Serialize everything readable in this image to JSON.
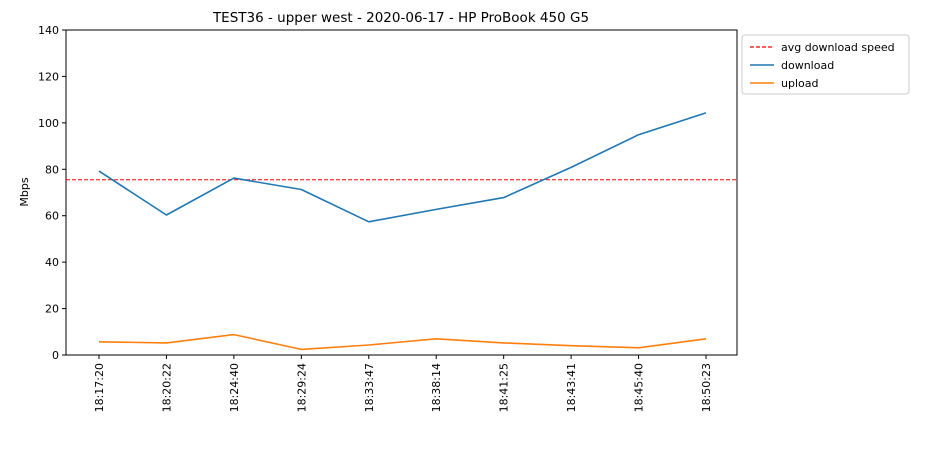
{
  "chart_data": {
    "type": "line",
    "title": "TEST36 - upper west - 2020-06-17 - HP ProBook 450 G5",
    "xlabel": "",
    "ylabel": "Mbps",
    "ylim": [
      0,
      140
    ],
    "yticks": [
      0,
      20,
      40,
      60,
      80,
      100,
      120,
      140
    ],
    "categories": [
      "18:17:20",
      "18:20:22",
      "18:24:40",
      "18:29:24",
      "18:33:47",
      "18:38:14",
      "18:41:25",
      "18:43:41",
      "18:45:40",
      "18:50:23"
    ],
    "series": [
      {
        "name": "download",
        "color": "#1f77b4",
        "style": "solid",
        "values": [
          79.2,
          60.3,
          76.2,
          71.3,
          57.4,
          62.7,
          67.8,
          80.8,
          94.9,
          104.3
        ]
      },
      {
        "name": "upload",
        "color": "#ff7f0e",
        "style": "solid",
        "values": [
          5.7,
          5.2,
          8.8,
          2.4,
          4.3,
          7.0,
          5.2,
          4.0,
          3.1,
          7.0
        ]
      }
    ],
    "hlines": [
      {
        "name": "avg download speed",
        "color": "#ff0000",
        "style": "dashed",
        "value": 75.5
      }
    ],
    "legend": {
      "placement": "outside-top-right",
      "entries": [
        {
          "label": "avg download speed",
          "color": "#ff0000",
          "style": "dashed"
        },
        {
          "label": "download",
          "color": "#1f77b4",
          "style": "solid"
        },
        {
          "label": "upload",
          "color": "#ff7f0e",
          "style": "solid"
        }
      ]
    },
    "grid": false
  }
}
